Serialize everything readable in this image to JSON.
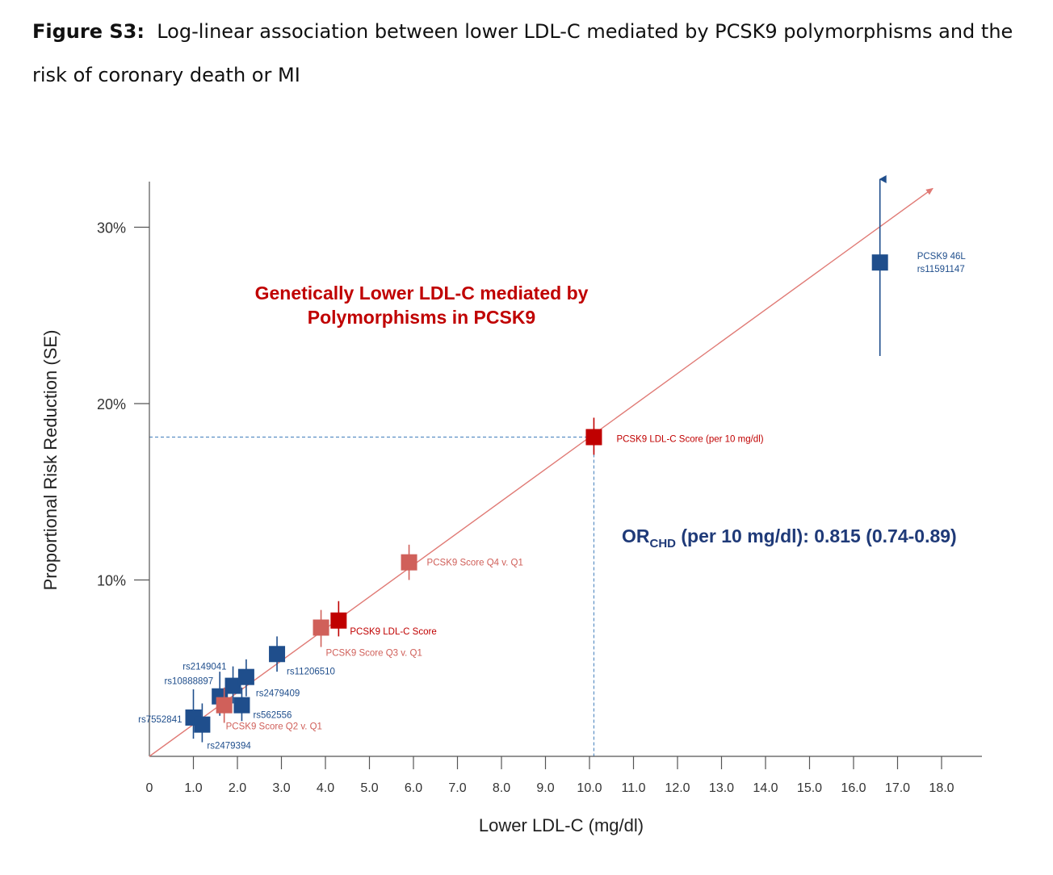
{
  "figure": {
    "label": "Figure S3:",
    "caption": "Log-linear association between lower LDL-C mediated by PCSK9 polymorphisms and the risk of coronary death or MI"
  },
  "chart_data": {
    "type": "scatter",
    "title_line1": "Genetically Lower LDL-C mediated by",
    "title_line2": "Polymorphisms in PCSK9",
    "xlabel": "Lower LDL-C (mg/dl)",
    "ylabel": "Proportional Risk Reduction (SE)",
    "xlim": [
      0,
      19
    ],
    "ylim": [
      0,
      33
    ],
    "x_ticks": [
      "0",
      "1.0",
      "2.0",
      "3.0",
      "4.0",
      "5.0",
      "6.0",
      "7.0",
      "8.0",
      "9.0",
      "10.0",
      "11.0",
      "12.0",
      "13.0",
      "14.0",
      "15.0",
      "16.0",
      "17.0",
      "18.0"
    ],
    "y_ticks": [
      {
        "value": 10,
        "label": "10%"
      },
      {
        "value": 20,
        "label": "20%"
      },
      {
        "value": 30,
        "label": "30%"
      }
    ],
    "colors": {
      "snp": "#1f4e8c",
      "score": "#d0605a",
      "main": "#c00000",
      "line": "#e07a75",
      "or_text": "#1f3a78"
    },
    "points": [
      {
        "label": "rs7552841",
        "x": 1.0,
        "y": 2.2,
        "ci": [
          1.0,
          3.8
        ],
        "group": "snp"
      },
      {
        "label": "rs2479394",
        "x": 1.2,
        "y": 1.8,
        "ci": [
          0.8,
          3.0
        ],
        "group": "snp"
      },
      {
        "label": "rs10888897",
        "x": 1.6,
        "y": 3.4,
        "ci": [
          2.3,
          4.8
        ],
        "group": "snp"
      },
      {
        "label": "PCSK9 Score Q2 v. Q1",
        "x": 1.7,
        "y": 2.9,
        "ci": [
          1.9,
          3.9
        ],
        "group": "score"
      },
      {
        "label": "rs2149041",
        "x": 1.9,
        "y": 4.0,
        "ci": [
          3.0,
          5.1
        ],
        "group": "snp"
      },
      {
        "label": "rs562556",
        "x": 2.1,
        "y": 2.9,
        "ci": [
          2.0,
          3.9
        ],
        "group": "snp"
      },
      {
        "label": "rs2479409",
        "x": 2.2,
        "y": 4.5,
        "ci": [
          3.4,
          5.5
        ],
        "group": "snp"
      },
      {
        "label": "rs11206510",
        "x": 2.9,
        "y": 5.8,
        "ci": [
          4.8,
          6.8
        ],
        "group": "snp"
      },
      {
        "label": "PCSK9 Score Q3 v. Q1",
        "x": 3.9,
        "y": 7.3,
        "ci": [
          6.2,
          8.3
        ],
        "group": "score"
      },
      {
        "label": "PCSK9 LDL-C Score",
        "x": 4.3,
        "y": 7.7,
        "ci": [
          6.8,
          8.8
        ],
        "group": "main"
      },
      {
        "label": "PCSK9 Score Q4 v. Q1",
        "x": 5.9,
        "y": 11.0,
        "ci": [
          10.0,
          12.0
        ],
        "group": "score"
      },
      {
        "label": "PCSK9 LDL-C Score (per 10 mg/dl)",
        "x": 10.1,
        "y": 18.1,
        "ci": [
          17.1,
          19.2
        ],
        "group": "main"
      },
      {
        "label_line1": "PCSK9 46L",
        "label_line2": "rs11591147",
        "x": 16.6,
        "y": 28.0,
        "ci": [
          22.7,
          33.0
        ],
        "group": "snp"
      }
    ],
    "fit_line": {
      "x": [
        0,
        17.8
      ],
      "y": [
        0,
        32.2
      ]
    },
    "reference": {
      "x": 10.1,
      "y": 18.1
    },
    "or_annotation": {
      "prefix": "OR",
      "subscript": "CHD",
      "text": " (per 10 mg/dl):  0.815 (0.74-0.89)"
    }
  }
}
